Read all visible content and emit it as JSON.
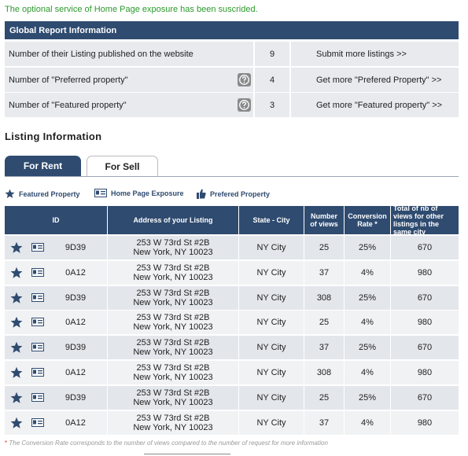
{
  "notice": "The optional service of Home Page exposure has been suscrided.",
  "global_report": {
    "title": "Global Report Information",
    "rows": [
      {
        "label": "Number of their Listing published on the website",
        "value": "9",
        "link": "Submit more listings >>"
      },
      {
        "label": "Number of \"Preferred property\"",
        "value": "4",
        "link": "Get more \"Prefered Property\" >>"
      },
      {
        "label": "Number of \"Featured property\"",
        "value": "3",
        "link": "Get more \"Featured property\" >>"
      }
    ]
  },
  "listing": {
    "title": "Listing Information",
    "tabs": [
      "For Rent",
      "For Sell"
    ],
    "legend": [
      "Featured Property",
      "Home Page Exposure",
      "Prefered Property"
    ],
    "columns": [
      "ID",
      "Address of your Listing",
      "State - City",
      "Number of views",
      "Conversion Rate *",
      "Total of nb of views for other listings in the same city"
    ],
    "rows": [
      [
        "9D39",
        "253 W 73rd St #2B",
        "New York, NY 10023",
        "NY City",
        "25",
        "25%",
        "670"
      ],
      [
        "0A12",
        "253 W 73rd St #2B",
        "New York, NY 10023",
        "NY City",
        "37",
        "4%",
        "980"
      ],
      [
        "9D39",
        "253 W 73rd St #2B",
        "New York, NY 10023",
        "NY City",
        "308",
        "25%",
        "670"
      ],
      [
        "0A12",
        "253 W 73rd St #2B",
        "New York, NY 10023",
        "NY City",
        "25",
        "4%",
        "980"
      ],
      [
        "9D39",
        "253 W 73rd St #2B",
        "New York, NY 10023",
        "NY City",
        "37",
        "25%",
        "670"
      ],
      [
        "0A12",
        "253 W 73rd St #2B",
        "New York, NY 10023",
        "NY City",
        "308",
        "4%",
        "980"
      ],
      [
        "9D39",
        "253 W 73rd St #2B",
        "New York, NY 10023",
        "NY City",
        "25",
        "25%",
        "670"
      ],
      [
        "0A12",
        "253 W 73rd St #2B",
        "New York, NY 10023",
        "NY City",
        "37",
        "4%",
        "980"
      ]
    ]
  },
  "footnote": {
    "marker": "*",
    "text": "The Conversion Rate corresponds to the number of views compared to the number of request for more information"
  }
}
